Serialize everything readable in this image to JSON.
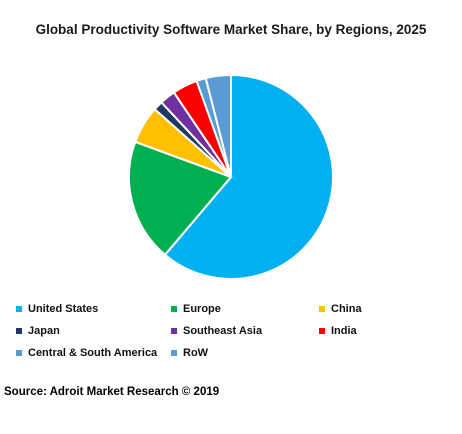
{
  "chart_data": {
    "type": "pie",
    "title": "Global Productivity Software Market Share, by Regions, 2025",
    "legend_position": "bottom",
    "slices": [
      {
        "label": "United States",
        "value": 61.5,
        "color": "#00b0f0"
      },
      {
        "label": "Europe",
        "value": 19.5,
        "color": "#00b050"
      },
      {
        "label": "China",
        "value": 6.0,
        "color": "#ffc000"
      },
      {
        "label": "Japan",
        "value": 1.5,
        "color": "#203864"
      },
      {
        "label": "Southeast Asia",
        "value": 2.5,
        "color": "#7030a0"
      },
      {
        "label": "India",
        "value": 4.0,
        "color": "#ff0000"
      },
      {
        "label": "Central & South America",
        "value": 1.5,
        "color": "#5b9bd5"
      },
      {
        "label": "RoW",
        "value": 4.0,
        "color": "#5b9bd5"
      }
    ]
  },
  "source": "Source: Adroit Market Research © 2019"
}
